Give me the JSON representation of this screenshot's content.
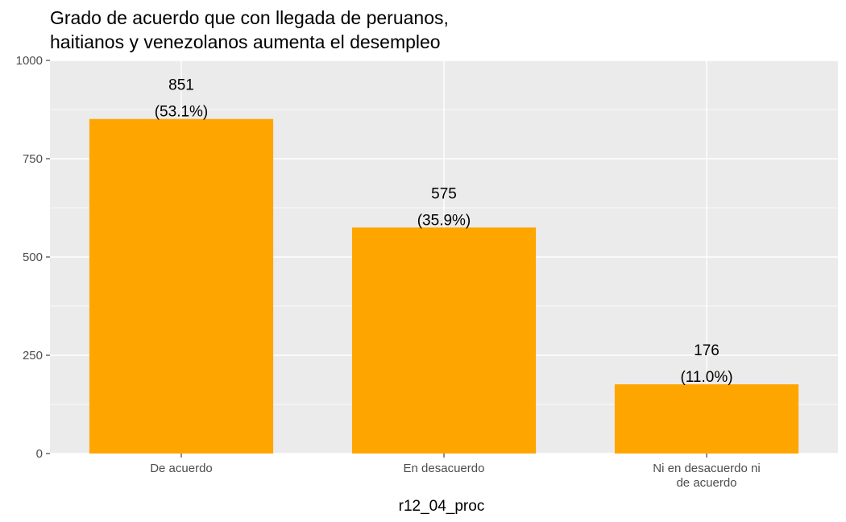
{
  "chart_data": {
    "type": "bar",
    "title": "Grado de acuerdo que con llegada de peruanos,",
    "title_line2": "haitianos y venezolanos aumenta el desempleo",
    "xlabel": "r12_04_proc",
    "ylabel": "",
    "categories": [
      "De acuerdo",
      "En desacuerdo",
      "Ni en desacuerdo ni de acuerdo"
    ],
    "category_lines": [
      [
        "De acuerdo"
      ],
      [
        "En desacuerdo"
      ],
      [
        "Ni en desacuerdo ni",
        "de acuerdo"
      ]
    ],
    "values": [
      851,
      575,
      176
    ],
    "count_labels": [
      "851",
      "575",
      "176"
    ],
    "percent_labels": [
      "(53.1%)",
      "(35.9%)",
      "(11.0%)"
    ],
    "ylim": [
      0,
      1000
    ],
    "yticks": [
      0,
      250,
      500,
      750,
      1000
    ],
    "grid": true,
    "legend": "none",
    "colors": {
      "bar": "#FFA500",
      "panel": "#EBEBEB",
      "grid": "#FFFFFF",
      "tick_text": "#4D4D4D",
      "tick_mark": "#333333"
    }
  }
}
